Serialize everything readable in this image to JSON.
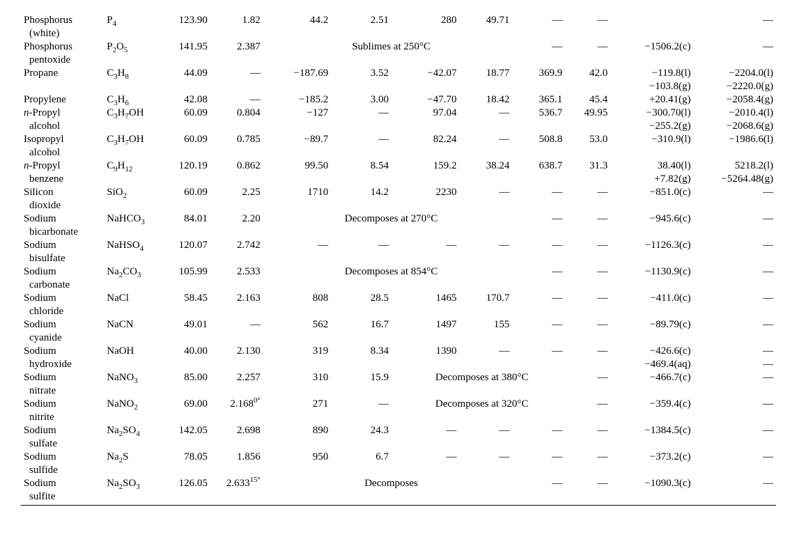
{
  "font_family": "Times New Roman",
  "font_size_pt": 11,
  "text_color": "#000000",
  "background_color": "#ffffff",
  "em_dash": "—",
  "minus": "−",
  "columns": [
    "name",
    "formula",
    "mol_wt",
    "density",
    "mp",
    "heat_fusion",
    "bp",
    "heat_vap",
    "tc",
    "pc",
    "dHf",
    "dHc"
  ],
  "rows": [
    {
      "name": [
        "Phosphorus",
        "(white)"
      ],
      "formula": "P<sub>4</sub>",
      "mw": "123.90",
      "den": "1.82",
      "mp": "44.2",
      "hf": "2.51",
      "bp": "280",
      "hv": "49.71",
      "tc": "—",
      "pc": "—",
      "dhf": [
        ""
      ],
      "dhc": [
        "—"
      ]
    },
    {
      "name": [
        "Phosphorus",
        "pentoxide"
      ],
      "formula": "P<sub>2</sub>O<sub>5</sub>",
      "mw": "141.95",
      "den": "2.387",
      "mp_bp_span": "Sublimes at 250°C",
      "tc": "—",
      "pc": "—",
      "dhf": [
        "−1506.2(c)"
      ],
      "dhc": [
        "—"
      ]
    },
    {
      "name": [
        "Propane"
      ],
      "formula": "C<sub>3</sub>H<sub>8</sub>",
      "mw": "44.09",
      "den": "—",
      "mp": "−187.69",
      "hf": "3.52",
      "bp": "−42.07",
      "hv": "18.77",
      "tc": "369.9",
      "pc": "42.0",
      "dhf": [
        "−119.8(l)",
        "−103.8(g)"
      ],
      "dhc": [
        "−2204.0(l)",
        "−2220.0(g)"
      ]
    },
    {
      "name": [
        "Propylene"
      ],
      "formula": "C<sub>3</sub>H<sub>6</sub>",
      "mw": "42.08",
      "den": "—",
      "mp": "−185.2",
      "hf": "3.00",
      "bp": "−47.70",
      "hv": "18.42",
      "tc": "365.1",
      "pc": "45.4",
      "dhf": [
        "+20.41(g)"
      ],
      "dhc": [
        "−2058.4(g)"
      ]
    },
    {
      "name": [
        "<i>n</i>-Propyl",
        "alcohol"
      ],
      "formula": "C<sub>3</sub>H<sub>7</sub>OH",
      "mw": "60.09",
      "den": "0.804",
      "mp": "−127",
      "hf": "—",
      "bp": "97.04",
      "hv": "—",
      "tc": "536.7",
      "pc": "49.95",
      "dhf": [
        "−300.70(l)",
        "−255.2(g)"
      ],
      "dhc": [
        "−2010.4(l)",
        "−2068.6(g)"
      ]
    },
    {
      "name": [
        "Isopropyl",
        "alcohol"
      ],
      "formula": "C<sub>3</sub>H<sub>7</sub>OH",
      "mw": "60.09",
      "den": "0.785",
      "mp": "−89.7",
      "hf": "—",
      "bp": "82.24",
      "hv": "—",
      "tc": "508.8",
      "pc": "53.0",
      "dhf": [
        "−310.9(l)"
      ],
      "dhc": [
        "−1986.6(l)"
      ]
    },
    {
      "name": [
        "<i>n</i>-Propyl",
        "benzene"
      ],
      "formula": "C<sub>9</sub>H<sub>12</sub>",
      "mw": "120.19",
      "den": "0.862",
      "mp": "99.50",
      "hf": "8.54",
      "bp": "159.2",
      "hv": "38.24",
      "tc": "638.7",
      "pc": "31.3",
      "dhf": [
        "38.40(l)",
        "+7.82(g)"
      ],
      "dhc": [
        "5218.2(l)",
        "−5264.48(g)"
      ]
    },
    {
      "name": [
        "Silicon",
        "dioxide"
      ],
      "formula": "SiO<sub>2</sub>",
      "mw": "60.09",
      "den": "2.25",
      "mp": "1710",
      "hf": "14.2",
      "bp": "2230",
      "hv": "—",
      "tc": "—",
      "pc": "—",
      "dhf": [
        "−851.0(c)"
      ],
      "dhc": [
        "—"
      ]
    },
    {
      "name": [
        "Sodium",
        "bicarbonate"
      ],
      "formula": "NaHCO<sub>3</sub>",
      "mw": "84.01",
      "den": "2.20",
      "mp_bp_span": "Decomposes at 270°C",
      "tc": "—",
      "pc": "—",
      "dhf": [
        "−945.6(c)"
      ],
      "dhc": [
        "—"
      ]
    },
    {
      "name": [
        "Sodium",
        "bisulfate"
      ],
      "formula": "NaHSO<sub>4</sub>",
      "mw": "120.07",
      "den": "2.742",
      "mp": "—",
      "hf": "—",
      "bp": "—",
      "hv": "—",
      "tc": "—",
      "pc": "—",
      "dhf": [
        "−1126.3(c)"
      ],
      "dhc": [
        "—"
      ]
    },
    {
      "name": [
        "Sodium",
        "carbonate"
      ],
      "formula": "Na<sub>2</sub>CO<sub>3</sub>",
      "mw": "105.99",
      "den": "2.533",
      "mp_bp_span": "Decomposes at 854°C",
      "tc": "—",
      "pc": "—",
      "dhf": [
        "−1130.9(c)"
      ],
      "dhc": [
        "—"
      ]
    },
    {
      "name": [
        "Sodium",
        "chloride"
      ],
      "formula": "NaCl",
      "mw": "58.45",
      "den": "2.163",
      "mp": "808",
      "hf": "28.5",
      "bp": "1465",
      "hv": "170.7",
      "tc": "—",
      "pc": "—",
      "dhf": [
        "−411.0(c)"
      ],
      "dhc": [
        "—"
      ]
    },
    {
      "name": [
        "Sodium",
        "cyanide"
      ],
      "formula": "NaCN",
      "mw": "49.01",
      "den": "—",
      "mp": "562",
      "hf": "16.7",
      "bp": "1497",
      "hv": "155",
      "tc": "—",
      "pc": "—",
      "dhf": [
        "−89.79(c)"
      ],
      "dhc": [
        "—"
      ]
    },
    {
      "name": [
        "Sodium",
        "hydroxide"
      ],
      "formula": "NaOH",
      "mw": "40.00",
      "den": "2.130",
      "mp": "319",
      "hf": "8.34",
      "bp": "1390",
      "hv": "—",
      "tc": "—",
      "pc": "—",
      "dhf": [
        "−426.6(c)",
        "−469.4(aq)"
      ],
      "dhc": [
        "—",
        "—"
      ]
    },
    {
      "name": [
        "Sodium",
        "nitrate"
      ],
      "formula": "NaNO<sub>3</sub>",
      "mw": "85.00",
      "den": "2.257",
      "mp": "310",
      "hf": "15.9",
      "bp_span": "Decomposes at 380°C",
      "pc": "—",
      "dhf": [
        "−466.7(c)"
      ],
      "dhc": [
        "—"
      ]
    },
    {
      "name": [
        "Sodium",
        "nitrite"
      ],
      "formula": "NaNO<sub>2</sub>",
      "mw": "69.00",
      "den": "2.168<sup>0°</sup>",
      "mp": "271",
      "hf": "—",
      "bp_span": "Decomposes at 320°C",
      "pc": "—",
      "dhf": [
        "−359.4(c)"
      ],
      "dhc": [
        "—"
      ]
    },
    {
      "name": [
        "Sodium",
        "sulfate"
      ],
      "formula": "Na<sub>2</sub>SO<sub>4</sub>",
      "mw": "142.05",
      "den": "2.698",
      "mp": "890",
      "hf": "24.3",
      "bp": "—",
      "hv": "—",
      "tc": "—",
      "pc": "—",
      "dhf": [
        "−1384.5(c)"
      ],
      "dhc": [
        "—"
      ]
    },
    {
      "name": [
        "Sodium",
        "sulfide"
      ],
      "formula": "Na<sub>2</sub>S",
      "mw": "78.05",
      "den": "1.856",
      "mp": "950",
      "hf": "6.7",
      "bp": "—",
      "hv": "—",
      "tc": "—",
      "pc": "—",
      "dhf": [
        "−373.2(c)"
      ],
      "dhc": [
        "—"
      ]
    },
    {
      "name": [
        "Sodium",
        "sulfite"
      ],
      "formula": "Na<sub>2</sub>SO<sub>3</sub>",
      "mw": "126.05",
      "den": "2.633<sup>15°</sup>",
      "mp_bp_span": "Decomposes",
      "tc": "—",
      "pc": "—",
      "dhf": [
        "−1090.3(c)"
      ],
      "dhc": [
        "—"
      ]
    }
  ]
}
